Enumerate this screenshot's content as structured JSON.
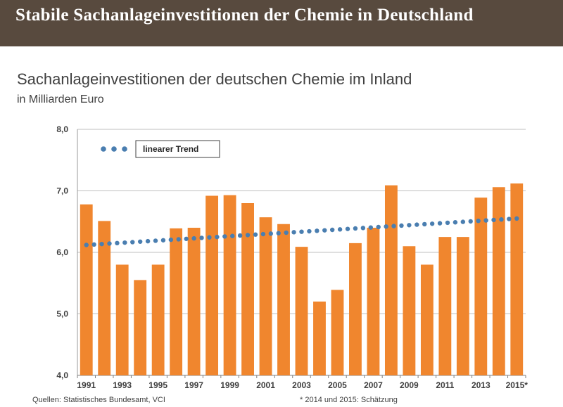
{
  "banner": {
    "title": "Stabile Sachanlageinvestitionen der Chemie in Deutschland"
  },
  "colors": {
    "bar": "#f0862e",
    "trend": "#4a7eb0",
    "banner": "#584a3e",
    "grid": "#bfbfbf",
    "text": "#404040"
  },
  "chart_data": {
    "type": "bar",
    "title": "Sachanlageinvestitionen der deutschen Chemie im Inland",
    "subtitle": "in Milliarden Euro",
    "categories": [
      "1991",
      "1992",
      "1993",
      "1994",
      "1995",
      "1996",
      "1997",
      "1998",
      "1999",
      "2000",
      "2001",
      "2002",
      "2003",
      "2004",
      "2005",
      "2006",
      "2007",
      "2008",
      "2009",
      "2010",
      "2011",
      "2012",
      "2013",
      "2014",
      "2015"
    ],
    "x_tick_labels": [
      "1991",
      "1993",
      "1995",
      "1997",
      "1999",
      "2001",
      "2003",
      "2005",
      "2007",
      "2009",
      "2011",
      "2013",
      "2015*"
    ],
    "series": [
      {
        "name": "Sachanlageinvestitionen",
        "values": [
          6.78,
          6.51,
          5.8,
          5.55,
          5.8,
          6.39,
          6.4,
          6.92,
          6.93,
          6.8,
          6.57,
          6.46,
          6.09,
          5.2,
          5.39,
          6.15,
          6.4,
          7.09,
          6.1,
          5.8,
          6.25,
          6.25,
          6.89,
          7.06,
          7.12
        ]
      }
    ],
    "trend": {
      "label": "linearer Trend",
      "start": 6.12,
      "end": 6.55
    },
    "y_ticks": [
      "4,0",
      "5,0",
      "6,0",
      "7,0",
      "8,0"
    ],
    "ylim": [
      4.0,
      8.0
    ],
    "grid": true,
    "legend_position": "top-left"
  },
  "footer": {
    "source": "Quellen: Statistisches Bundesamt, VCI",
    "note": "* 2014 und 2015: Schätzung"
  }
}
